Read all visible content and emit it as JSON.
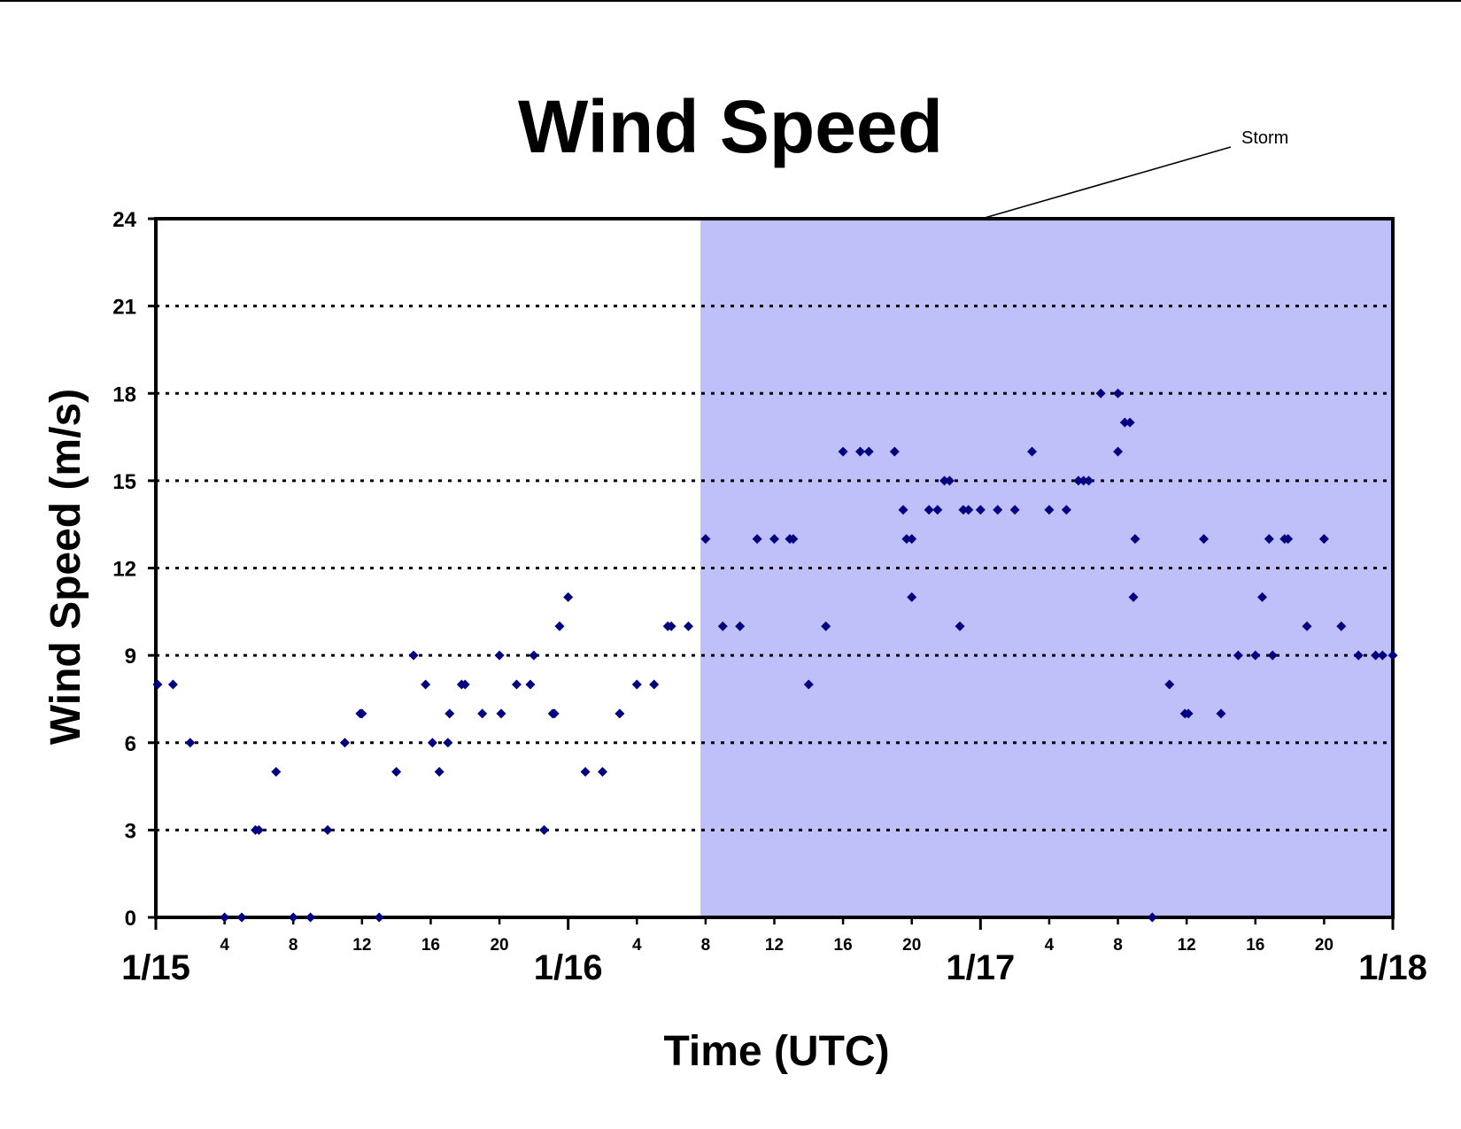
{
  "chart_data": {
    "type": "scatter",
    "title": "Wind Speed",
    "xlabel": "Time (UTC)",
    "ylabel": "Wind Speed (m/s)",
    "x_unit": "hours from 1/15 00:00 UTC",
    "xlim": [
      0,
      72
    ],
    "ylim": [
      0,
      24
    ],
    "yticks": [
      "0",
      "3",
      "6",
      "9",
      "12",
      "15",
      "18",
      "21",
      "24"
    ],
    "ytick_values": [
      0,
      3,
      6,
      9,
      12,
      15,
      18,
      21,
      24
    ],
    "grid": "dotted horizontal",
    "day_ticks": [
      {
        "label": "1/15",
        "hour": 0
      },
      {
        "label": "1/16",
        "hour": 24
      },
      {
        "label": "1/17",
        "hour": 48
      },
      {
        "label": "1/18",
        "hour": 72
      }
    ],
    "hour_ticks": [
      {
        "label": "4",
        "hour": 4
      },
      {
        "label": "8",
        "hour": 8
      },
      {
        "label": "12",
        "hour": 12
      },
      {
        "label": "16",
        "hour": 16
      },
      {
        "label": "20",
        "hour": 20
      },
      {
        "label": "4",
        "hour": 28
      },
      {
        "label": "8",
        "hour": 32
      },
      {
        "label": "12",
        "hour": 36
      },
      {
        "label": "16",
        "hour": 40
      },
      {
        "label": "20",
        "hour": 44
      },
      {
        "label": "4",
        "hour": 52
      },
      {
        "label": "8",
        "hour": 56
      },
      {
        "label": "12",
        "hour": 60
      },
      {
        "label": "16",
        "hour": 64
      },
      {
        "label": "20",
        "hour": 68
      }
    ],
    "shaded_region": {
      "label": "Storm",
      "x_start": 31.7,
      "x_end": 72,
      "color": "#bfbff9"
    },
    "marker_color": "#000080",
    "points": [
      [
        0.1,
        8
      ],
      [
        1.0,
        8
      ],
      [
        2.0,
        6
      ],
      [
        4.0,
        0
      ],
      [
        5.0,
        0
      ],
      [
        5.8,
        3
      ],
      [
        6.0,
        3
      ],
      [
        7.0,
        5
      ],
      [
        8.0,
        0
      ],
      [
        9.0,
        0
      ],
      [
        10.0,
        3
      ],
      [
        11.0,
        6
      ],
      [
        11.9,
        7
      ],
      [
        12.0,
        7
      ],
      [
        13.0,
        0
      ],
      [
        14.0,
        5
      ],
      [
        15.0,
        9
      ],
      [
        15.7,
        8
      ],
      [
        16.1,
        6
      ],
      [
        16.5,
        5
      ],
      [
        17.0,
        6
      ],
      [
        17.1,
        7
      ],
      [
        17.8,
        8
      ],
      [
        18.0,
        8
      ],
      [
        19.0,
        7
      ],
      [
        20.0,
        9
      ],
      [
        20.1,
        7
      ],
      [
        21.0,
        8
      ],
      [
        21.8,
        8
      ],
      [
        22.0,
        9
      ],
      [
        22.6,
        3
      ],
      [
        23.1,
        7
      ],
      [
        23.2,
        7
      ],
      [
        23.5,
        10
      ],
      [
        24.0,
        11
      ],
      [
        25.0,
        5
      ],
      [
        26.0,
        5
      ],
      [
        27.0,
        7
      ],
      [
        28.0,
        8
      ],
      [
        29.0,
        8
      ],
      [
        29.8,
        10
      ],
      [
        30.0,
        10
      ],
      [
        31.0,
        10
      ],
      [
        32.0,
        13
      ],
      [
        33.0,
        10
      ],
      [
        34.0,
        10
      ],
      [
        35.0,
        13
      ],
      [
        36.0,
        13
      ],
      [
        36.9,
        13
      ],
      [
        37.1,
        13
      ],
      [
        38.0,
        8
      ],
      [
        39.0,
        10
      ],
      [
        40.0,
        16
      ],
      [
        41.0,
        16
      ],
      [
        41.5,
        16
      ],
      [
        43.0,
        16
      ],
      [
        43.5,
        14
      ],
      [
        43.7,
        13
      ],
      [
        44.0,
        13
      ],
      [
        44.0,
        11
      ],
      [
        45.0,
        14
      ],
      [
        45.5,
        14
      ],
      [
        45.9,
        15
      ],
      [
        46.2,
        15
      ],
      [
        46.8,
        10
      ],
      [
        47.0,
        14
      ],
      [
        47.3,
        14
      ],
      [
        48.0,
        14
      ],
      [
        49.0,
        14
      ],
      [
        50.0,
        14
      ],
      [
        51.0,
        16
      ],
      [
        52.0,
        14
      ],
      [
        53.0,
        14
      ],
      [
        53.7,
        15
      ],
      [
        54.0,
        15
      ],
      [
        54.3,
        15
      ],
      [
        55.0,
        18
      ],
      [
        56.0,
        18
      ],
      [
        56.0,
        16
      ],
      [
        56.4,
        17
      ],
      [
        56.7,
        17
      ],
      [
        56.9,
        11
      ],
      [
        57.0,
        13
      ],
      [
        58.0,
        0
      ],
      [
        59.0,
        8
      ],
      [
        59.9,
        7
      ],
      [
        60.1,
        7
      ],
      [
        61.0,
        13
      ],
      [
        62.0,
        7
      ],
      [
        63.0,
        9
      ],
      [
        64.0,
        9
      ],
      [
        64.4,
        11
      ],
      [
        64.8,
        13
      ],
      [
        65.0,
        9
      ],
      [
        65.7,
        13
      ],
      [
        65.9,
        13
      ],
      [
        67.0,
        10
      ],
      [
        68.0,
        13
      ],
      [
        69.0,
        10
      ],
      [
        70.0,
        9
      ],
      [
        71.0,
        9
      ],
      [
        71.4,
        9
      ],
      [
        72.0,
        9
      ]
    ]
  }
}
